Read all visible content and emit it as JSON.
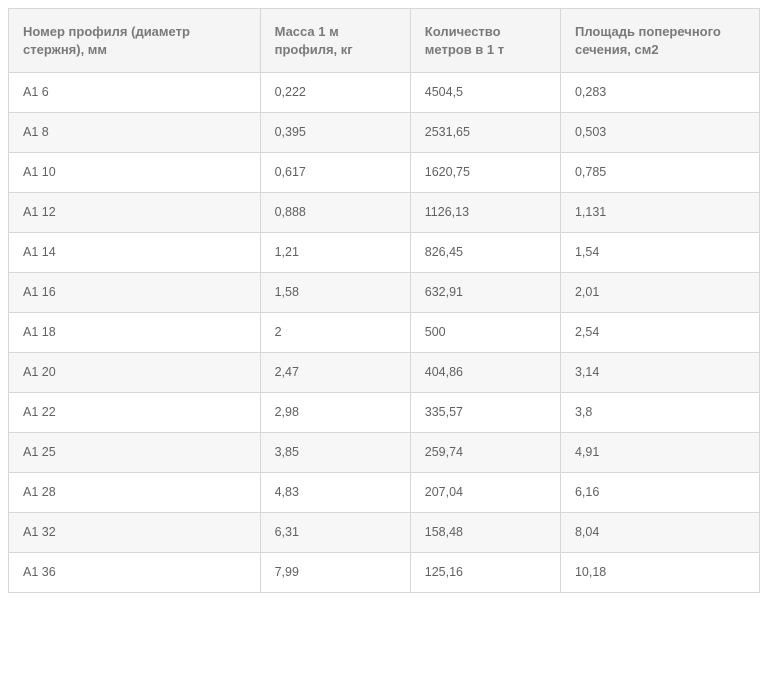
{
  "table": {
    "columns": [
      "Номер профиля (диаметр стержня), мм",
      "Масса 1 м профиля, кг",
      "Количество метров в 1 т",
      "Площадь поперечного сечения, см2"
    ],
    "column_widths_pct": [
      33.5,
      20,
      20,
      26.5
    ],
    "header_bg": "#f5f5f5",
    "header_text_color": "#7a7a7a",
    "header_fontsize_pt": 10,
    "body_text_color": "#616161",
    "body_fontsize_pt": 9.5,
    "border_color": "#d7d7d7",
    "row_alt_bg": "#f7f7f7",
    "row_bg": "#ffffff",
    "rows": [
      [
        "А1 6",
        "0,222",
        "4504,5",
        "0,283"
      ],
      [
        "А1 8",
        "0,395",
        "2531,65",
        "0,503"
      ],
      [
        "А1 10",
        "0,617",
        "1620,75",
        "0,785"
      ],
      [
        "А1 12",
        "0,888",
        "1126,13",
        "1,131"
      ],
      [
        "А1 14",
        "1,21",
        "826,45",
        "1,54"
      ],
      [
        "А1 16",
        "1,58",
        "632,91",
        "2,01"
      ],
      [
        "А1 18",
        "2",
        "500",
        "2,54"
      ],
      [
        "А1 20",
        "2,47",
        "404,86",
        "3,14"
      ],
      [
        "А1 22",
        "2,98",
        "335,57",
        "3,8"
      ],
      [
        "А1 25",
        "3,85",
        "259,74",
        "4,91"
      ],
      [
        "А1 28",
        "4,83",
        "207,04",
        "6,16"
      ],
      [
        "А1 32",
        "6,31",
        "158,48",
        "8,04"
      ],
      [
        "А1 36",
        "7,99",
        "125,16",
        "10,18"
      ]
    ]
  }
}
